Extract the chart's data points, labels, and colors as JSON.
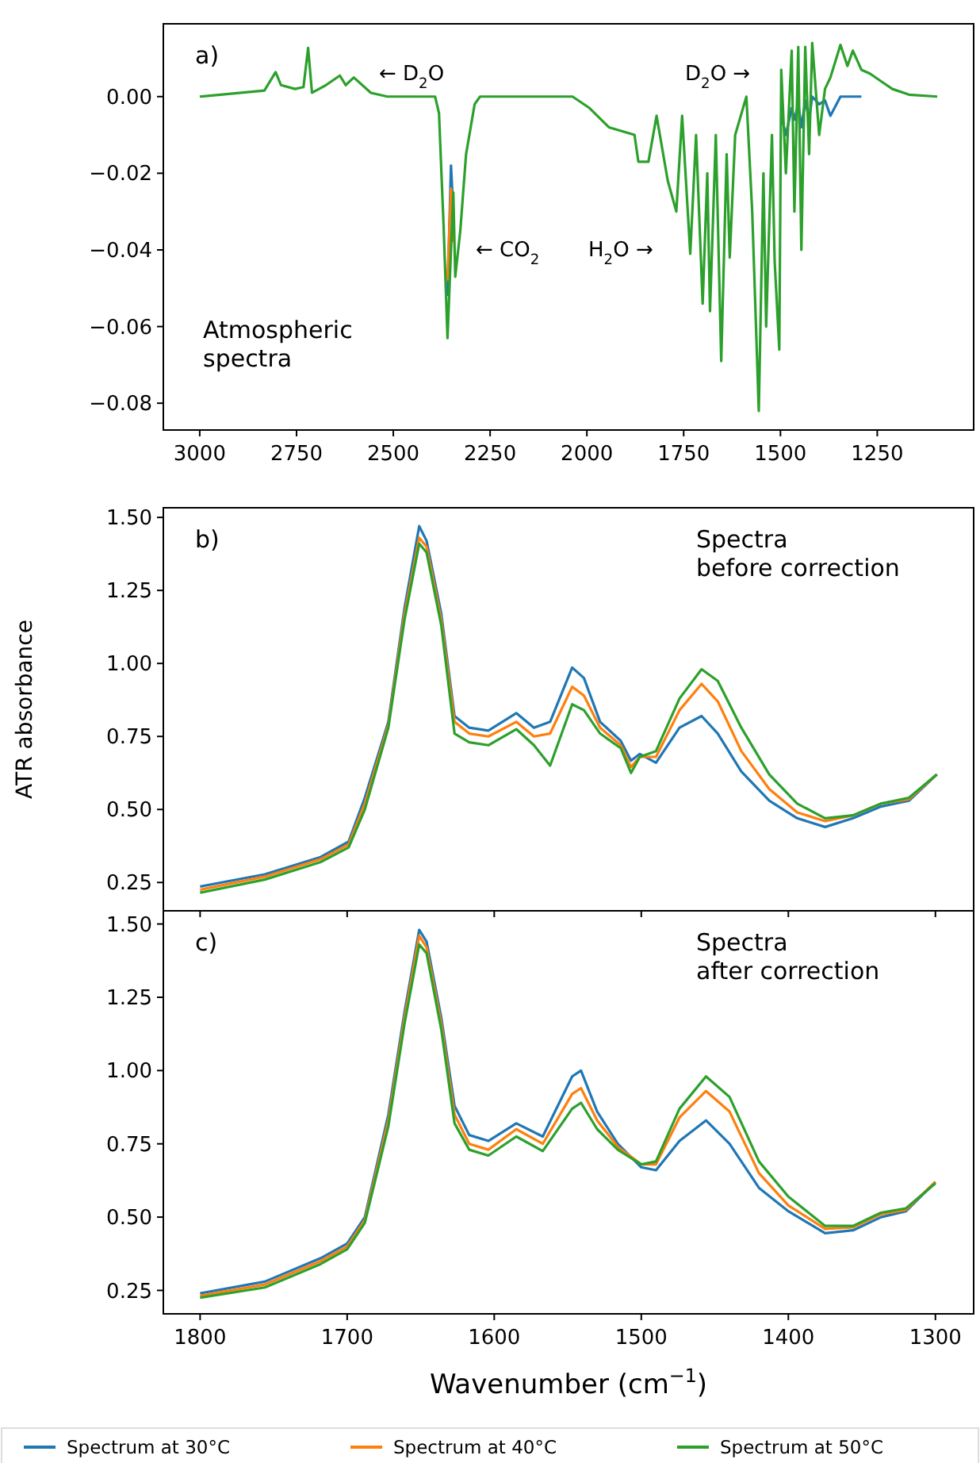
{
  "chart_data": [
    {
      "type": "line",
      "xlim": [
        3094,
        1001
      ],
      "ylim": [
        -0.087,
        0.019
      ],
      "xticks": [
        3000,
        2750,
        2500,
        2250,
        2000,
        1750,
        1500,
        1250
      ],
      "yticks": [
        {
          "value": -0.08,
          "label": "−0.08"
        },
        {
          "value": -0.06,
          "label": "−0.06"
        },
        {
          "value": -0.04,
          "label": "−0.04"
        },
        {
          "value": -0.02,
          "label": "−0.02"
        },
        {
          "value": 0,
          "label": "0.00"
        }
      ],
      "annotations": [
        "a)",
        "Atmospheric\nspectra",
        "← D$_{2}$O",
        "D$_{2}$O →",
        "← CO$_{2}$",
        "H$_{2}$O →"
      ],
      "x": [
        3000,
        2833,
        2804,
        2790,
        2754,
        2732,
        2720,
        2710,
        2674,
        2638,
        2623,
        2602,
        2558,
        2515,
        2392,
        2382,
        2370,
        2360,
        2351,
        2345,
        2340,
        2327,
        2312,
        2290,
        2276,
        2037,
        1993,
        1943,
        1877,
        1867,
        1841,
        1820,
        1791,
        1769,
        1754,
        1733,
        1718,
        1701,
        1689,
        1682,
        1667,
        1653,
        1639,
        1631,
        1617,
        1588,
        1573,
        1556,
        1544,
        1537,
        1522,
        1515,
        1503,
        1498,
        1486,
        1471,
        1464,
        1454,
        1446,
        1436,
        1426,
        1418,
        1400,
        1385,
        1371,
        1345,
        1327,
        1313,
        1291,
        1269,
        1240,
        1211,
        1168,
        1095
      ],
      "series": [
        {
          "color": "#1f77b4",
          "values": [
            null,
            null,
            null,
            null,
            null,
            null,
            null,
            null,
            null,
            null,
            null,
            null,
            null,
            null,
            null,
            null,
            null,
            -0.052,
            -0.018,
            -0.03,
            null,
            null,
            null,
            null,
            null,
            null,
            null,
            null,
            null,
            null,
            null,
            null,
            null,
            null,
            null,
            null,
            null,
            null,
            null,
            null,
            null,
            null,
            null,
            null,
            null,
            null,
            null,
            null,
            null,
            null,
            null,
            null,
            null,
            -0.005,
            -0.01,
            -0.003,
            -0.006,
            -0.002,
            -0.008,
            -0.001,
            -0.006,
            0,
            -0.002,
            -0.001,
            -0.005,
            0,
            0,
            0,
            0,
            null,
            null,
            null,
            null,
            null
          ]
        },
        {
          "color": "#ff7f0e",
          "values": [
            null,
            null,
            null,
            null,
            null,
            null,
            null,
            null,
            null,
            null,
            null,
            null,
            null,
            null,
            null,
            null,
            null,
            -0.048,
            -0.024,
            -0.038,
            null,
            null,
            null,
            null,
            null,
            null,
            null,
            null,
            null,
            null,
            null,
            null,
            null,
            null,
            null,
            null,
            null,
            null,
            null,
            null,
            null,
            null,
            null,
            null,
            null,
            null,
            null,
            null,
            null,
            null,
            null,
            null,
            null,
            null,
            null,
            null,
            null,
            null,
            null,
            null,
            null,
            null,
            null,
            null,
            null,
            null,
            null,
            null,
            null,
            null,
            null,
            null,
            null,
            null
          ]
        },
        {
          "color": "#2ca02c",
          "values": [
            0,
            0.0016,
            0.0064,
            0.003,
            0.002,
            0.0025,
            0.0127,
            0.001,
            0.003,
            0.0055,
            0.003,
            0.005,
            0.001,
            0,
            0,
            -0.0043,
            -0.034,
            -0.063,
            -0.04,
            -0.025,
            -0.047,
            -0.035,
            -0.015,
            -0.002,
            0,
            0,
            -0.003,
            -0.008,
            -0.01,
            -0.017,
            -0.017,
            -0.005,
            -0.022,
            -0.03,
            -0.005,
            -0.041,
            -0.01,
            -0.054,
            -0.02,
            -0.056,
            -0.01,
            -0.069,
            -0.015,
            -0.042,
            -0.01,
            0,
            -0.03,
            -0.082,
            -0.02,
            -0.06,
            -0.01,
            -0.043,
            -0.066,
            0.007,
            -0.02,
            0.012,
            -0.03,
            0.013,
            -0.04,
            0.013,
            -0.015,
            0.014,
            -0.01,
            0.002,
            0.005,
            0.0135,
            0.008,
            0.012,
            0.007,
            0.006,
            0.004,
            0.002,
            0.0005,
            0
          ]
        }
      ]
    },
    {
      "type": "line",
      "ylabel": "ATR absorbance",
      "tick_labels": "y",
      "xlim": [
        1825,
        1274
      ],
      "ylim": [
        0.153,
        1.533
      ],
      "xticks": [
        1800,
        1700,
        1600,
        1500,
        1400,
        1300
      ],
      "yticks": [
        {
          "value": 0.25,
          "label": "0.25"
        },
        {
          "value": 0.5,
          "label": "0.50"
        },
        {
          "value": 0.75,
          "label": "0.75"
        },
        {
          "value": 1,
          "label": "1.00"
        },
        {
          "value": 1.25,
          "label": "1.25"
        },
        {
          "value": 1.5,
          "label": "1.50"
        }
      ],
      "annotations": [
        "b)",
        "Spectra\nbefore correction"
      ],
      "x": [
        1800,
        1756,
        1718,
        1699,
        1688,
        1672,
        1661,
        1651,
        1646,
        1636,
        1627,
        1617,
        1604,
        1585,
        1573,
        1562,
        1547,
        1539,
        1528,
        1514,
        1507,
        1501,
        1490,
        1474,
        1459,
        1448,
        1432,
        1413,
        1394,
        1375,
        1356,
        1337,
        1318,
        1299
      ],
      "series": [
        {
          "color": "#1f77b4",
          "values": [
            0.236,
            0.278,
            0.337,
            0.39,
            0.54,
            0.8,
            1.19,
            1.47,
            1.42,
            1.17,
            0.82,
            0.78,
            0.77,
            0.83,
            0.78,
            0.8,
            0.986,
            0.95,
            0.8,
            0.735,
            0.667,
            0.69,
            0.66,
            0.78,
            0.82,
            0.76,
            0.63,
            0.53,
            0.47,
            0.44,
            0.47,
            0.51,
            0.53,
            0.62
          ]
        },
        {
          "color": "#ff7f0e",
          "values": [
            0.225,
            0.27,
            0.33,
            0.38,
            0.52,
            0.79,
            1.17,
            1.43,
            1.4,
            1.15,
            0.8,
            0.76,
            0.75,
            0.8,
            0.75,
            0.76,
            0.92,
            0.89,
            0.78,
            0.72,
            0.645,
            0.68,
            0.68,
            0.84,
            0.93,
            0.87,
            0.7,
            0.57,
            0.49,
            0.46,
            0.48,
            0.52,
            0.535,
            0.62
          ]
        },
        {
          "color": "#2ca02c",
          "values": [
            0.215,
            0.26,
            0.32,
            0.37,
            0.5,
            0.78,
            1.15,
            1.41,
            1.38,
            1.13,
            0.76,
            0.73,
            0.72,
            0.775,
            0.72,
            0.65,
            0.86,
            0.84,
            0.76,
            0.71,
            0.625,
            0.68,
            0.7,
            0.88,
            0.98,
            0.94,
            0.78,
            0.62,
            0.52,
            0.47,
            0.48,
            0.52,
            0.54,
            0.62
          ]
        }
      ]
    },
    {
      "type": "line",
      "xlabel": "Wavenumber (cm$^{−1}$)",
      "legend": "bottom",
      "xlim": [
        1825,
        1274
      ],
      "ylim": [
        0.17,
        1.545
      ],
      "xticks": [
        1800,
        1700,
        1600,
        1500,
        1400,
        1300
      ],
      "yticks": [
        {
          "value": 0.25,
          "label": "0.25"
        },
        {
          "value": 0.5,
          "label": "0.50"
        },
        {
          "value": 0.75,
          "label": "0.75"
        },
        {
          "value": 1,
          "label": "1.00"
        },
        {
          "value": 1.25,
          "label": "1.25"
        },
        {
          "value": 1.5,
          "label": "1.50"
        }
      ],
      "annotations": [
        "c)",
        "Spectra\nafter correction"
      ],
      "x": [
        1800,
        1756,
        1718,
        1700,
        1688,
        1672,
        1661,
        1651,
        1646,
        1636,
        1627,
        1617,
        1604,
        1585,
        1567,
        1547,
        1541,
        1530,
        1516,
        1500,
        1490,
        1474,
        1456,
        1440,
        1420,
        1400,
        1375,
        1356,
        1337,
        1320,
        1300
      ],
      "series": [
        {
          "name": "Spectrum at 30°C",
          "color": "#1f77b4",
          "values": [
            0.24,
            0.28,
            0.36,
            0.41,
            0.5,
            0.85,
            1.2,
            1.48,
            1.44,
            1.18,
            0.88,
            0.78,
            0.76,
            0.82,
            0.775,
            0.98,
            1.0,
            0.86,
            0.75,
            0.67,
            0.66,
            0.76,
            0.83,
            0.75,
            0.6,
            0.52,
            0.445,
            0.455,
            0.5,
            0.52,
            0.62
          ]
        },
        {
          "name": "Spectrum at 40°C",
          "color": "#ff7f0e",
          "values": [
            0.232,
            0.27,
            0.35,
            0.4,
            0.49,
            0.83,
            1.18,
            1.46,
            1.42,
            1.16,
            0.85,
            0.75,
            0.73,
            0.8,
            0.75,
            0.92,
            0.94,
            0.83,
            0.74,
            0.68,
            0.68,
            0.84,
            0.93,
            0.86,
            0.65,
            0.54,
            0.46,
            0.465,
            0.51,
            0.525,
            0.62
          ]
        },
        {
          "name": "Spectrum at 50°C",
          "color": "#2ca02c",
          "values": [
            0.225,
            0.26,
            0.34,
            0.39,
            0.48,
            0.81,
            1.16,
            1.43,
            1.4,
            1.14,
            0.82,
            0.73,
            0.71,
            0.775,
            0.725,
            0.87,
            0.89,
            0.8,
            0.73,
            0.68,
            0.69,
            0.87,
            0.98,
            0.91,
            0.69,
            0.57,
            0.47,
            0.47,
            0.515,
            0.53,
            0.615
          ]
        }
      ]
    }
  ]
}
